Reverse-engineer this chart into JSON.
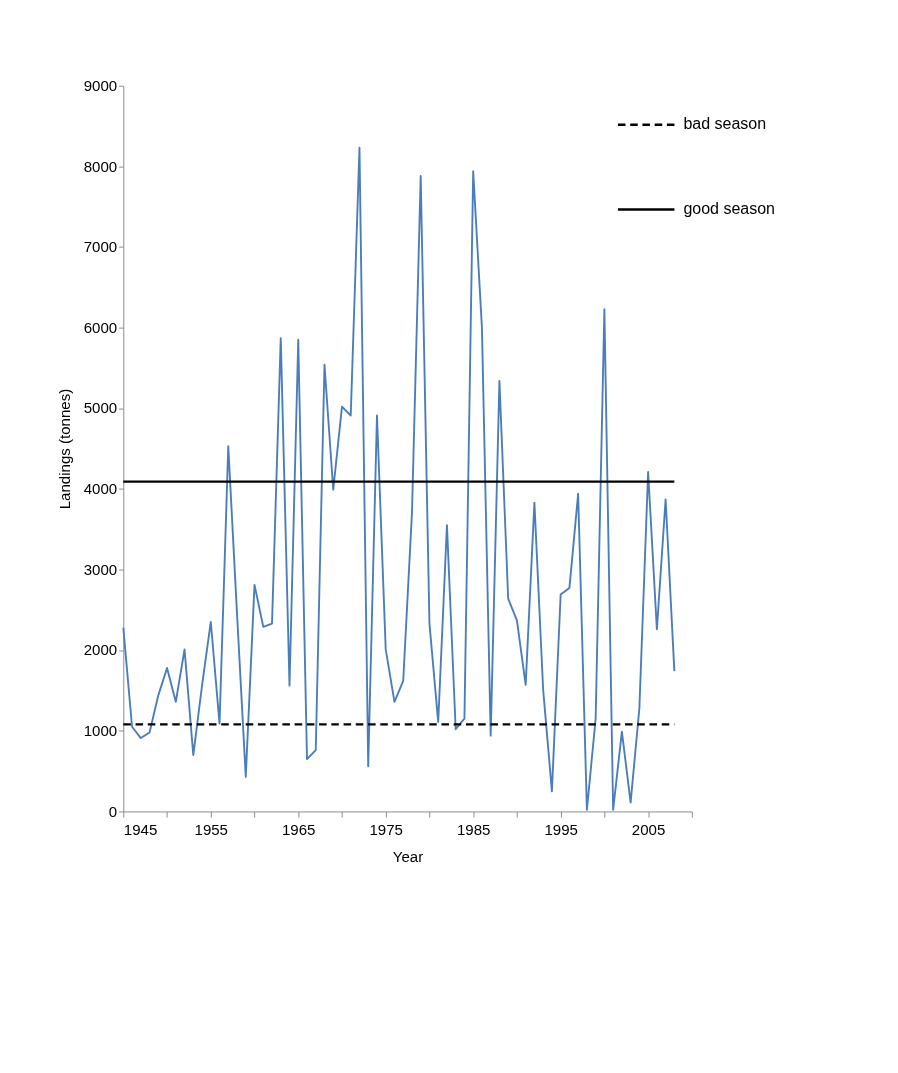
{
  "chart_data": {
    "type": "line",
    "xlabel": "Year",
    "ylabel": "Landings (tonnes)",
    "x": [
      1945,
      1946,
      1947,
      1948,
      1949,
      1950,
      1951,
      1952,
      1953,
      1954,
      1955,
      1956,
      1957,
      1958,
      1959,
      1960,
      1961,
      1962,
      1963,
      1964,
      1965,
      1966,
      1967,
      1968,
      1969,
      1970,
      1971,
      1972,
      1973,
      1974,
      1975,
      1976,
      1977,
      1978,
      1979,
      1980,
      1981,
      1982,
      1983,
      1984,
      1985,
      1986,
      1987,
      1988,
      1989,
      1990,
      1991,
      1992,
      1993,
      1994,
      1995,
      1996,
      1997,
      1998,
      1999,
      2000,
      2001,
      2002,
      2003,
      2004,
      2005,
      2006,
      2007,
      2008
    ],
    "series": [
      {
        "color": "#4a7ebb",
        "values": [
          2280,
          1050,
          910,
          980,
          1440,
          1780,
          1360,
          2010,
          700,
          1560,
          2350,
          1090,
          4530,
          2450,
          430,
          2810,
          2290,
          2330,
          5870,
          1560,
          5850,
          650,
          760,
          5540,
          3990,
          5020,
          4910,
          8230,
          560,
          4910,
          2010,
          1360,
          1620,
          3700,
          7880,
          2330,
          1110,
          3550,
          1020,
          1150,
          7940,
          6000,
          940,
          5340,
          2640,
          2370,
          1570,
          3830,
          1510,
          250,
          2690,
          2770,
          3940,
          20,
          1150,
          6230,
          20,
          990,
          110,
          1280,
          4210,
          2260,
          3870,
          1740
        ]
      }
    ],
    "ref_lines": [
      {
        "axis": "y",
        "value": 1080,
        "label": "bad season",
        "line_style": "dashed",
        "color": "#000000"
      },
      {
        "axis": "y",
        "value": 4090,
        "label": "good season",
        "line_style": "solid",
        "color": "#000000"
      }
    ],
    "xlim": [
      1945,
      2010
    ],
    "xticks": [
      1945,
      {
        "value": 1950,
        "label": null
      },
      1955,
      {
        "value": 1960,
        "label": null
      },
      1965,
      {
        "value": 1970,
        "label": null
      },
      1975,
      {
        "value": 1980,
        "label": null
      },
      1985,
      {
        "value": 1990,
        "label": null
      },
      1995,
      {
        "value": 2000,
        "label": null
      },
      2005,
      {
        "value": 2010,
        "label": null
      }
    ],
    "ylim": [
      0,
      9000
    ],
    "yticks": [
      0,
      1000,
      2000,
      3000,
      4000,
      5000,
      6000,
      7000,
      8000,
      9000
    ],
    "grid": false,
    "legend": "top right",
    "marker": "none",
    "line_style": "solid"
  }
}
